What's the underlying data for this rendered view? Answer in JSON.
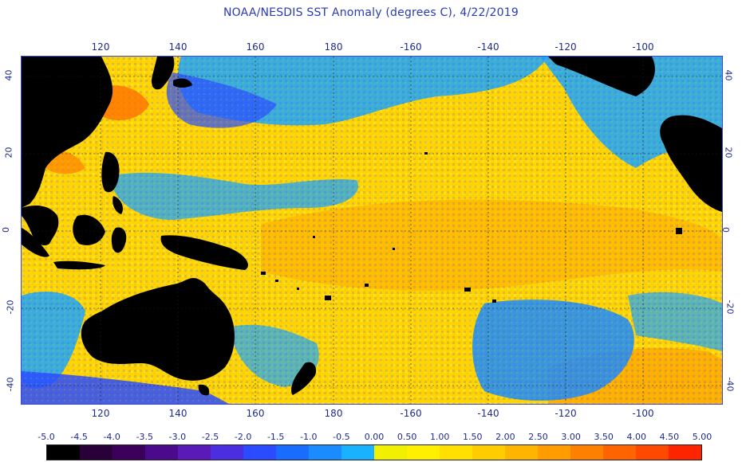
{
  "title": "NOAA/NESDIS SST Anomaly (degrees C), 4/22/2019",
  "lon_labels": [
    "120",
    "140",
    "160",
    "180",
    "-160",
    "-140",
    "-120",
    "-100"
  ],
  "lat_labels": [
    "40",
    "20",
    "0",
    "-20",
    "-40"
  ],
  "colorbar": {
    "tick_labels": [
      "-5.0",
      "-4.5",
      "-4.0",
      "-3.5",
      "-3.0",
      "-2.5",
      "-2.0",
      "-1.5",
      "-1.0",
      "-0.5",
      "0.00",
      "0.50",
      "1.00",
      "1.50",
      "2.00",
      "2.50",
      "3.00",
      "3.50",
      "4.00",
      "4.50",
      "5.00"
    ],
    "colors": [
      "#000000",
      "#2a0038",
      "#3c005c",
      "#4b0a8c",
      "#5a1ab8",
      "#4a2ee0",
      "#2a4bff",
      "#1a6cff",
      "#1a8cff",
      "#1ab2ff",
      "#f0f000",
      "#fff000",
      "#ffe000",
      "#ffcc00",
      "#ffb400",
      "#ff9c00",
      "#ff8000",
      "#ff6400",
      "#ff4800",
      "#ff2400"
    ]
  },
  "map": {
    "land_color": "#000000",
    "ocean_base": "#ffd800",
    "cool_color": "#1aa6ff",
    "cold_color": "#2a4bff",
    "warm_color": "#ffb000",
    "hot_color": "#ff6a00"
  }
}
